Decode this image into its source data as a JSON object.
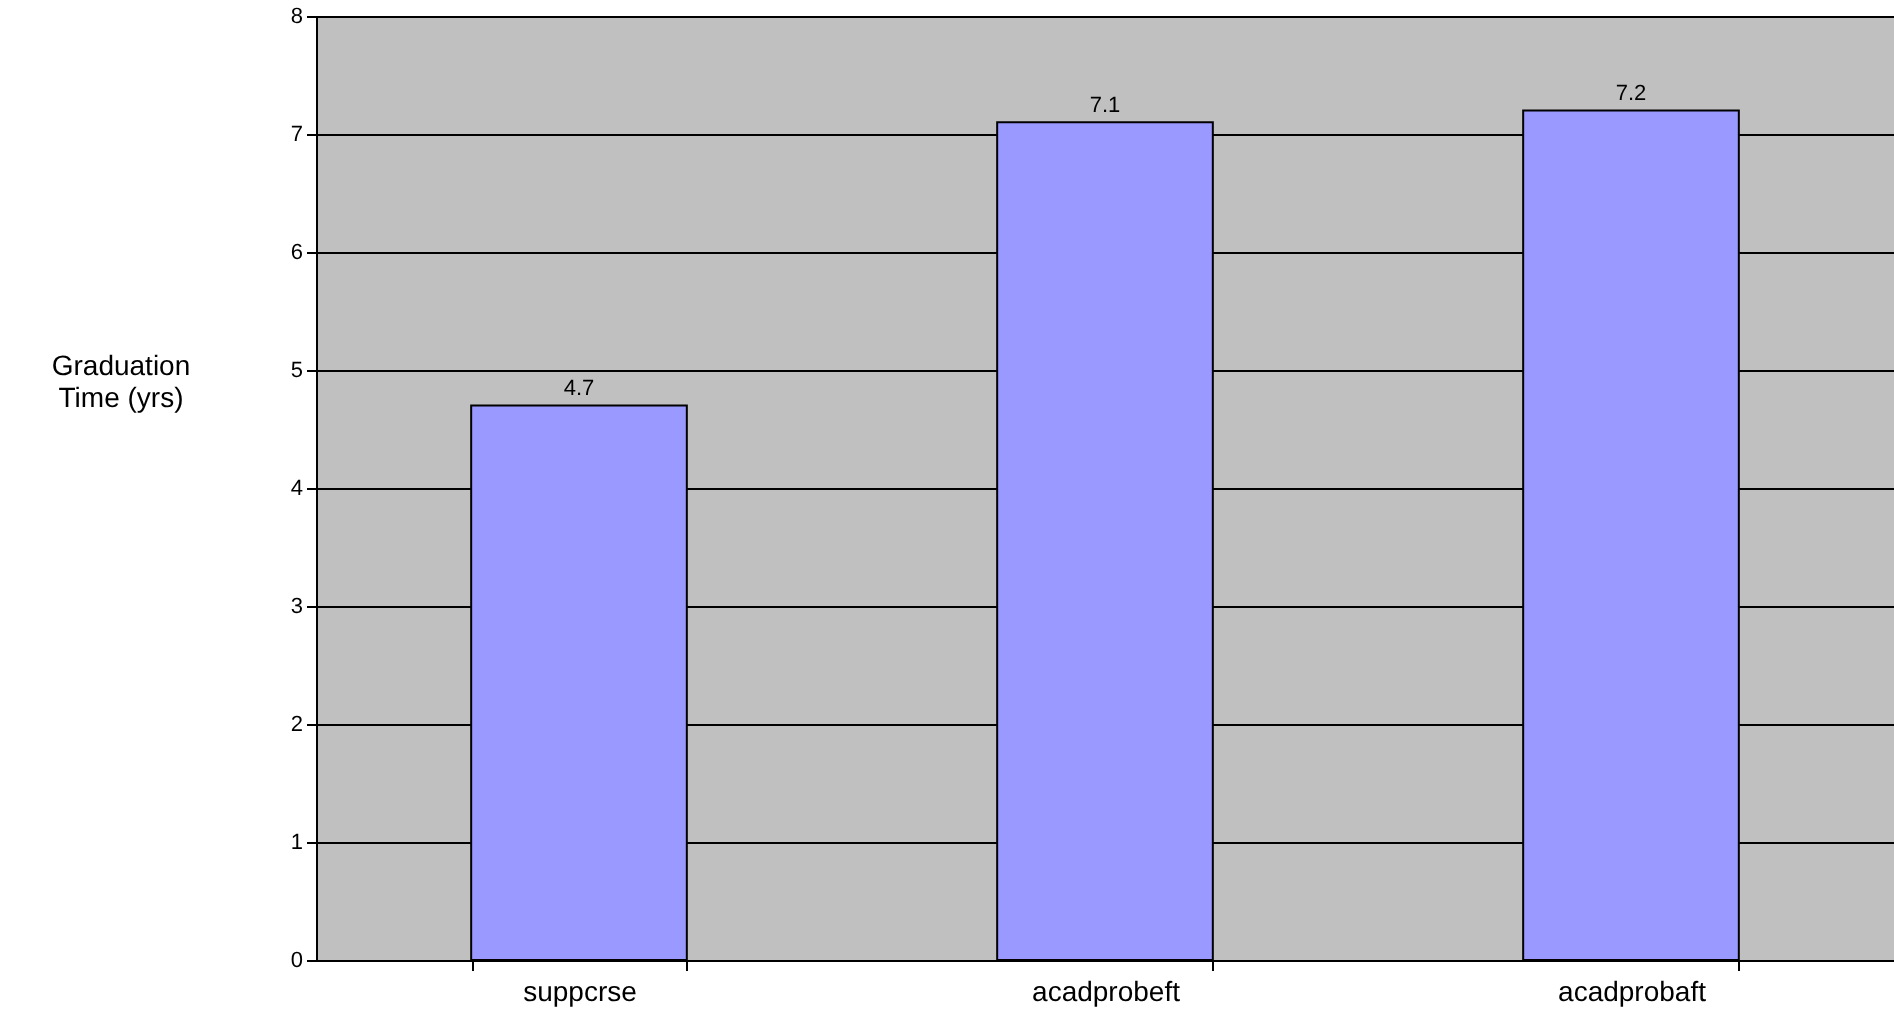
{
  "chart_data": {
    "type": "bar",
    "ylabel": "Graduation Time (yrs)",
    "categories": [
      "suppcrse",
      "acadprobeft",
      "acadprobaft"
    ],
    "values": [
      4.7,
      7.1,
      7.2
    ],
    "color": "#9999ff",
    "ylim": [
      0,
      8
    ],
    "yticks": [
      0,
      1,
      2,
      3,
      4,
      5,
      6,
      7,
      8
    ],
    "grid": "y",
    "data_labels": true
  }
}
